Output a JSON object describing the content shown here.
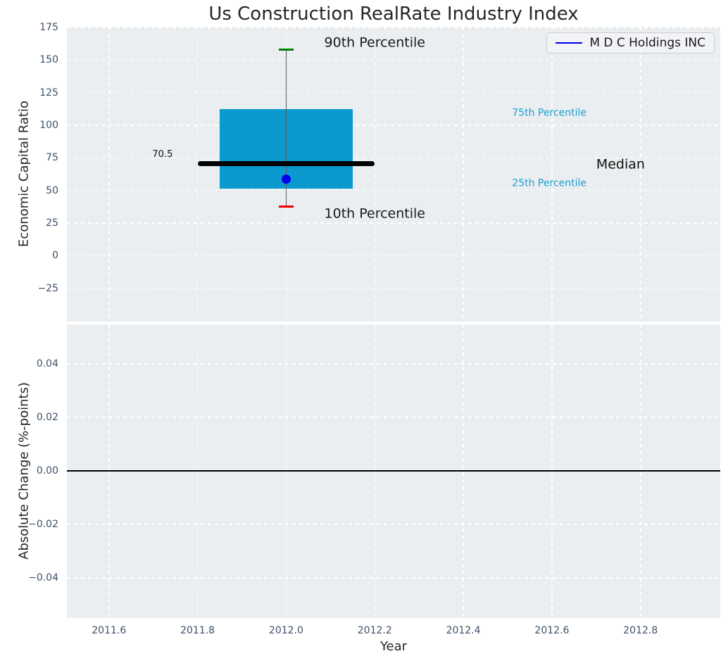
{
  "title": "Us Construction RealRate Industry Index",
  "legend": {
    "label": "M D C Holdings INC",
    "line_color": "#0000ee"
  },
  "colors": {
    "box_fill": "#0a9ace",
    "percentile_text": "#1b9ed3",
    "whisker": "#5e5e5e",
    "cap_90th": "#008000",
    "cap_10th": "#f50000",
    "median_line": "#000000",
    "company_dot": "#0000ee",
    "zero_line": "#000000",
    "plot_bg": "#ebeef0",
    "grid": "#ffffff",
    "tick_text": "#3d5168",
    "label_text": "#262626"
  },
  "chart_data": {
    "type": "box",
    "title": "Us Construction RealRate Industry Index",
    "legend_entries": [
      "M D C Holdings INC"
    ],
    "xlim": [
      2011.505,
      2012.98
    ],
    "xticks": [
      {
        "v": 2011.6,
        "label": "2011.6"
      },
      {
        "v": 2011.8,
        "label": "2011.8"
      },
      {
        "v": 2012.0,
        "label": "2012.0"
      },
      {
        "v": 2012.2,
        "label": "2012.2"
      },
      {
        "v": 2012.4,
        "label": "2012.4"
      },
      {
        "v": 2012.6,
        "label": "2012.6"
      },
      {
        "v": 2012.8,
        "label": "2012.8"
      }
    ],
    "top_axes": {
      "ylabel": "Economic Capital Ratio",
      "ylim": [
        -50.6,
        175.6
      ],
      "yticks": [
        {
          "v": 175,
          "label": "175"
        },
        {
          "v": 150,
          "label": "150"
        },
        {
          "v": 125,
          "label": "125"
        },
        {
          "v": 100,
          "label": "100"
        },
        {
          "v": 75,
          "label": "75"
        },
        {
          "v": 50,
          "label": "50"
        },
        {
          "v": 25,
          "label": "25"
        },
        {
          "v": 0,
          "label": "0"
        },
        {
          "v": -25,
          "label": "−25"
        }
      ],
      "box": {
        "x": 2012.0,
        "box_halfwidth": 0.15,
        "median_halfwidth": 0.2,
        "cap_halfwidth": 0.017,
        "p90": 158,
        "p75": 112.5,
        "median": 70.5,
        "p25": 51.5,
        "p10": 37.5,
        "company_value": 58.5
      },
      "annotations": [
        {
          "text": "90th Percentile",
          "x": 2012.2,
          "y": 163,
          "align": "center",
          "size": 19,
          "color": "#1a1a1a"
        },
        {
          "text": "10th Percentile",
          "x": 2012.2,
          "y": 32,
          "align": "center",
          "size": 19,
          "color": "#1a1a1a"
        },
        {
          "text": "75th Percentile",
          "x": 2012.51,
          "y": 109,
          "align": "left",
          "size": 14,
          "color": "#1b9ed3"
        },
        {
          "text": "25th Percentile",
          "x": 2012.51,
          "y": 55,
          "align": "left",
          "size": 14,
          "color": "#1b9ed3"
        },
        {
          "text": "Median",
          "x": 2012.7,
          "y": 70,
          "align": "left",
          "size": 19,
          "color": "#111111"
        },
        {
          "text": "70.5",
          "x": 2011.744,
          "y": 77.5,
          "align": "right",
          "size": 13,
          "color": "#111111"
        }
      ]
    },
    "bottom_axes": {
      "ylabel": "Absolute Change (%-points)",
      "xlabel": "Year",
      "ylim": [
        -0.055,
        0.0547
      ],
      "yticks": [
        {
          "v": 0.04,
          "label": "0.04"
        },
        {
          "v": 0.02,
          "label": "0.02"
        },
        {
          "v": 0.0,
          "label": "0.00"
        },
        {
          "v": -0.02,
          "label": "−0.02"
        },
        {
          "v": -0.04,
          "label": "−0.04"
        }
      ],
      "zero_line": 0.0
    }
  }
}
